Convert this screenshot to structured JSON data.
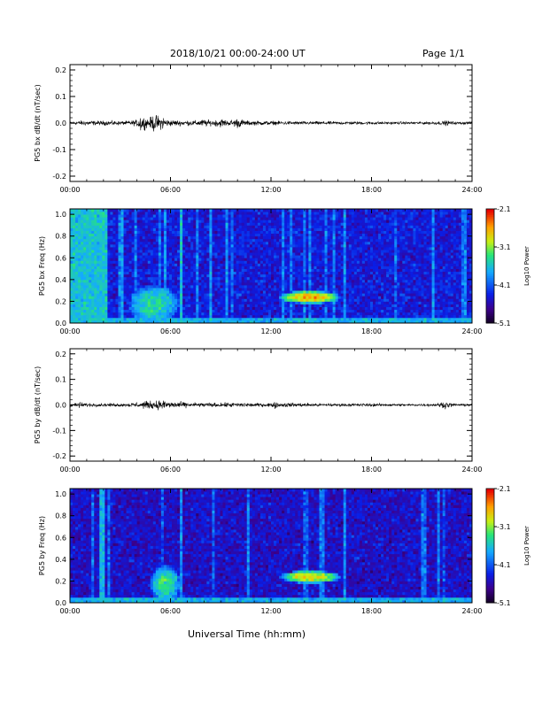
{
  "header": {
    "title": "2018/10/21  00:00-24:00 UT",
    "page": "Page 1/1"
  },
  "xlabel": "Universal Time (hh:mm)",
  "chart_data": [
    {
      "type": "line",
      "ylabel": "PG5 bx dB/dt (nT/sec)",
      "x_ticks": [
        "00:00",
        "06:00",
        "12:00",
        "18:00",
        "24:00"
      ],
      "y_ticks": [
        "0.2",
        "0.1",
        "0.0",
        "-0.1",
        "-0.2"
      ],
      "ylim": [
        -0.22,
        0.22
      ],
      "xlim_hours": [
        0,
        24
      ],
      "series": [
        {
          "x_hours": [
            0,
            0.5,
            1,
            1.5,
            2,
            2.5,
            3,
            3.5,
            4,
            4.2,
            4.4,
            4.6,
            4.8,
            5,
            5.2,
            5.4,
            5.6,
            5.8,
            6,
            6.5,
            7,
            7.5,
            8,
            8.5,
            9,
            9.5,
            10,
            10.5,
            11,
            11.5,
            12,
            13,
            14,
            15,
            16,
            17,
            18,
            19,
            20,
            21,
            22,
            22.5,
            23,
            24
          ],
          "amplitude": [
            0.006,
            0.007,
            0.008,
            0.007,
            0.007,
            0.007,
            0.006,
            0.007,
            0.01,
            0.03,
            0.02,
            0.015,
            0.018,
            0.028,
            0.025,
            0.02,
            0.022,
            0.012,
            0.01,
            0.009,
            0.008,
            0.008,
            0.012,
            0.008,
            0.014,
            0.008,
            0.016,
            0.008,
            0.007,
            0.007,
            0.006,
            0.006,
            0.005,
            0.005,
            0.005,
            0.005,
            0.005,
            0.004,
            0.004,
            0.004,
            0.005,
            0.008,
            0.004,
            0.004
          ]
        }
      ]
    },
    {
      "type": "heatmap",
      "ylabel": "PG5 bx Freq (Hz)",
      "x_ticks": [
        "00:00",
        "06:00",
        "12:00",
        "18:00",
        "24:00"
      ],
      "y_ticks": [
        "1.0",
        "0.8",
        "0.6",
        "0.4",
        "0.2",
        "0.0"
      ],
      "ylim": [
        0,
        1.05
      ],
      "colorbar": {
        "label": "Log10 Power",
        "ticks": [
          "-2.1",
          "-3.1",
          "-4.1",
          "-5.1"
        ],
        "range": [
          -5.1,
          -2.1
        ]
      },
      "background_level": -4.4,
      "features": [
        {
          "kind": "band",
          "t": [
            0,
            2.3
          ],
          "f": [
            0,
            1.05
          ],
          "level": -3.6
        },
        {
          "kind": "line",
          "t": [
            6.6,
            6.75
          ],
          "f": [
            0,
            1.05
          ],
          "level": -3.6
        },
        {
          "kind": "blob",
          "t": [
            3.5,
            6.5
          ],
          "f": [
            0,
            0.35
          ],
          "level": -3.4
        },
        {
          "kind": "blob",
          "t": [
            12.5,
            16.2
          ],
          "f": [
            0.18,
            0.3
          ],
          "level": -2.6
        },
        {
          "kind": "strip",
          "t": [
            0,
            24
          ],
          "f": [
            0,
            0.04
          ],
          "level": -3.7
        }
      ]
    },
    {
      "type": "line",
      "ylabel": "PG5 by dB/dt (nT/sec)",
      "x_ticks": [
        "00:00",
        "06:00",
        "12:00",
        "18:00",
        "24:00"
      ],
      "y_ticks": [
        "0.2",
        "0.1",
        "0.0",
        "-0.1",
        "-0.2"
      ],
      "ylim": [
        -0.22,
        0.22
      ],
      "xlim_hours": [
        0,
        24
      ],
      "series": [
        {
          "x_hours": [
            0,
            0.5,
            1,
            1.5,
            2,
            2.5,
            3,
            3.5,
            4,
            4.5,
            5,
            5.5,
            6,
            6.5,
            7,
            7.5,
            8,
            8.5,
            9,
            9.5,
            10,
            10.5,
            11,
            11.5,
            12,
            12.2,
            12.5,
            13,
            14,
            15,
            16,
            17,
            18,
            19,
            20,
            21,
            22,
            22.3,
            22.6,
            23,
            24
          ],
          "amplitude": [
            0.008,
            0.009,
            0.006,
            0.005,
            0.005,
            0.005,
            0.005,
            0.006,
            0.009,
            0.012,
            0.014,
            0.016,
            0.012,
            0.01,
            0.008,
            0.007,
            0.007,
            0.007,
            0.007,
            0.007,
            0.009,
            0.007,
            0.006,
            0.006,
            0.006,
            0.012,
            0.006,
            0.007,
            0.006,
            0.005,
            0.005,
            0.005,
            0.005,
            0.004,
            0.004,
            0.004,
            0.005,
            0.012,
            0.008,
            0.004,
            0.004
          ]
        }
      ]
    },
    {
      "type": "heatmap",
      "ylabel": "PG5 by Freq (Hz)",
      "x_ticks": [
        "00:00",
        "06:00",
        "12:00",
        "18:00",
        "24:00"
      ],
      "y_ticks": [
        "1.0",
        "0.8",
        "0.6",
        "0.4",
        "0.2",
        "0.0"
      ],
      "ylim": [
        0,
        1.05
      ],
      "colorbar": {
        "label": "Log10 Power",
        "ticks": [
          "-2.1",
          "-3.1",
          "-4.1",
          "-5.1"
        ],
        "range": [
          -5.1,
          -2.1
        ]
      },
      "background_level": -4.5,
      "features": [
        {
          "kind": "line",
          "t": [
            1.8,
            2.0
          ],
          "f": [
            0,
            1.05
          ],
          "level": -3.7
        },
        {
          "kind": "blob",
          "t": [
            4.8,
            6.6
          ],
          "f": [
            0,
            0.35
          ],
          "level": -3.3
        },
        {
          "kind": "blob",
          "t": [
            12.5,
            16.2
          ],
          "f": [
            0.18,
            0.3
          ],
          "level": -2.8
        },
        {
          "kind": "strip",
          "t": [
            0,
            24
          ],
          "f": [
            0,
            0.04
          ],
          "level": -3.7
        }
      ]
    }
  ]
}
